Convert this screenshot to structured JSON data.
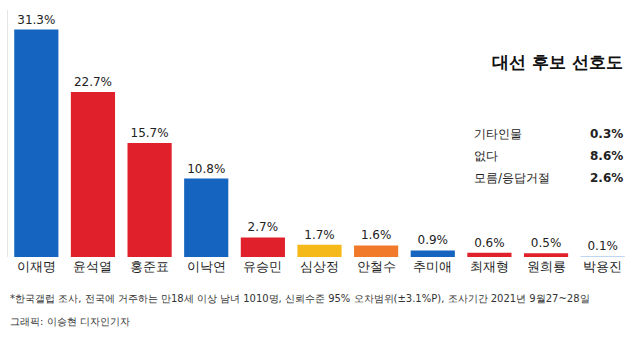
{
  "chart_data": {
    "type": "bar",
    "title": "대선 후보 선호도",
    "categories": [
      "이재명",
      "윤석열",
      "홍준표",
      "이낙연",
      "유승민",
      "심상정",
      "안철수",
      "추미애",
      "최재형",
      "원희룡",
      "박용진"
    ],
    "values": [
      31.3,
      22.7,
      15.7,
      10.8,
      2.7,
      1.7,
      1.6,
      0.9,
      0.6,
      0.5,
      0.1
    ],
    "value_labels": [
      "31.3%",
      "22.7%",
      "15.7%",
      "10.8%",
      "2.7%",
      "1.7%",
      "1.6%",
      "0.9%",
      "0.6%",
      "0.5%",
      "0.1%"
    ],
    "colors": [
      "#1565c0",
      "#e0212b",
      "#e0212b",
      "#1565c0",
      "#e0212b",
      "#f6b91a",
      "#f07a2a",
      "#1565c0",
      "#e0212b",
      "#e0212b",
      "#a8c8ee"
    ],
    "data_labels": true,
    "tick_labels": "x",
    "grid": false,
    "ylim": [
      0,
      34
    ],
    "yticks": [
      0
    ],
    "side_notes": [
      {
        "label": "기타인물",
        "value_label": "0.3%"
      },
      {
        "label": "없다",
        "value_label": "8.6%"
      },
      {
        "label": "모름/응답거절",
        "value_label": "2.6%"
      }
    ],
    "notes": [
      "*한국갤럽 조사, 전국에 거주하는 만18세 이상 남녀 1010명, 신뢰수준 95% 오차범위(±3.1%P), 조사기간 2021년 9월27~28일",
      "그래픽: 이승현 디자인기자"
    ]
  }
}
